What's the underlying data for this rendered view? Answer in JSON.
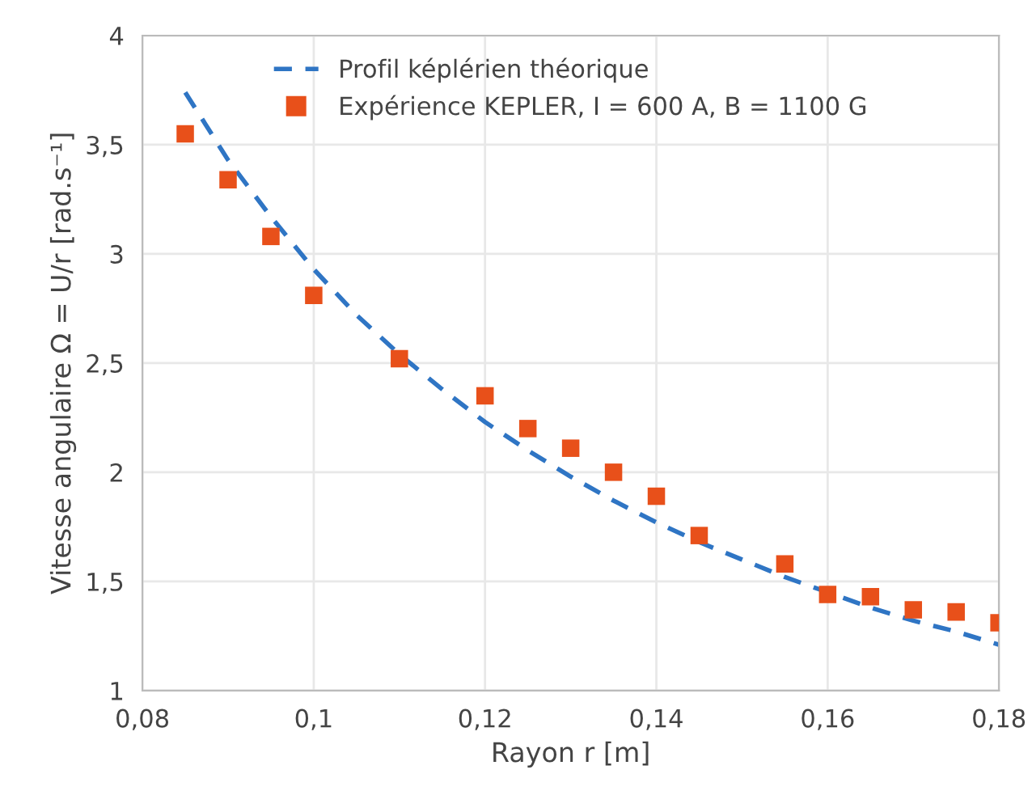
{
  "chart_data": {
    "type": "scatter",
    "xlabel": "Rayon r [m]",
    "ylabel": "Vitesse angulaire Ω = U/r [rad.s⁻¹]",
    "xlim": [
      0.08,
      0.18
    ],
    "ylim": [
      1,
      4
    ],
    "xticks": [
      {
        "value": 0.08,
        "label": "0,08"
      },
      {
        "value": 0.1,
        "label": "0,1"
      },
      {
        "value": 0.12,
        "label": "0,12"
      },
      {
        "value": 0.14,
        "label": "0,14"
      },
      {
        "value": 0.16,
        "label": "0,16"
      },
      {
        "value": 0.18,
        "label": "0,18"
      }
    ],
    "yticks": [
      1,
      {
        "value": 1.5,
        "label": "1,5"
      },
      2,
      {
        "value": 2.5,
        "label": "2,5"
      },
      3,
      {
        "value": 3.5,
        "label": "3,5"
      },
      4
    ],
    "grid": true,
    "legend": "top",
    "series": [
      {
        "name": "Profil képlérien théorique",
        "type": "line",
        "line_style": "dashed",
        "marker": "none",
        "color": "#2f75c4",
        "x": [
          0.085,
          0.09,
          0.095,
          0.1,
          0.105,
          0.11,
          0.115,
          0.12,
          0.125,
          0.13,
          0.135,
          0.14,
          0.145,
          0.15,
          0.155,
          0.16,
          0.165,
          0.17,
          0.175,
          0.18
        ],
        "values": [
          3.74,
          3.43,
          3.17,
          2.93,
          2.72,
          2.54,
          2.38,
          2.23,
          2.1,
          1.98,
          1.87,
          1.77,
          1.68,
          1.6,
          1.52,
          1.45,
          1.38,
          1.32,
          1.27,
          1.21
        ]
      },
      {
        "name": "Expérience KEPLER, I = 600 A, B = 1100 G",
        "marker": "square",
        "color": "#e8501a",
        "x": [
          0.085,
          0.09,
          0.095,
          0.1,
          0.11,
          0.12,
          0.125,
          0.13,
          0.135,
          0.14,
          0.145,
          0.155,
          0.16,
          0.165,
          0.17,
          0.175,
          0.18
        ],
        "values": [
          3.55,
          3.34,
          3.08,
          2.81,
          2.52,
          2.35,
          2.2,
          2.11,
          2.0,
          1.89,
          1.71,
          1.58,
          1.44,
          1.43,
          1.37,
          1.36,
          1.31
        ]
      }
    ]
  }
}
